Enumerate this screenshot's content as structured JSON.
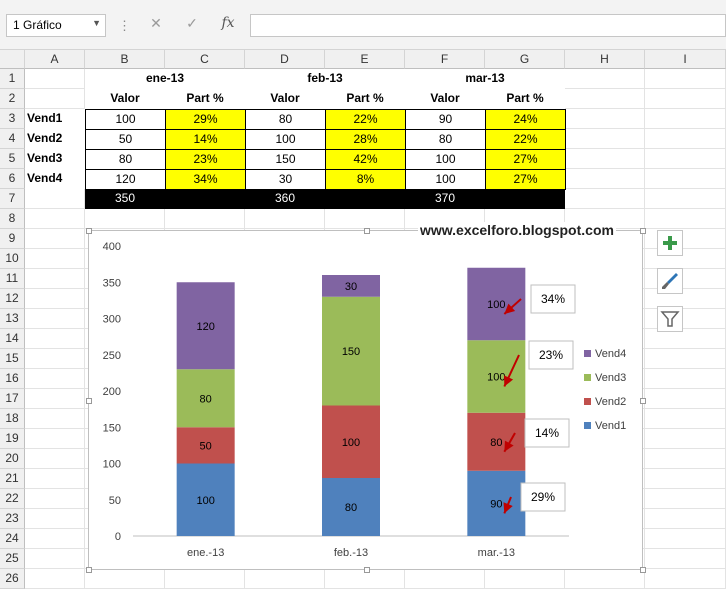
{
  "formula_bar": {
    "name_box": "1 Gráfico",
    "cancel_icon": "✕",
    "enter_icon": "✓",
    "fx_label": "fx",
    "formula": ""
  },
  "columns": [
    "A",
    "B",
    "C",
    "D",
    "E",
    "F",
    "G",
    "H",
    "I"
  ],
  "rows": [
    "1",
    "2",
    "3",
    "4",
    "5",
    "6",
    "7",
    "8",
    "9",
    "10",
    "11",
    "12",
    "13",
    "14",
    "15",
    "16",
    "17",
    "18",
    "19",
    "20",
    "21",
    "22",
    "23",
    "24",
    "25",
    "26"
  ],
  "sheet": {
    "month_headers": [
      "ene-13",
      "feb-13",
      "mar-13"
    ],
    "sub_headers": [
      "Valor",
      "Part %",
      "Valor",
      "Part %",
      "Valor",
      "Part %"
    ],
    "row_labels": [
      "Vend1",
      "Vend2",
      "Vend3",
      "Vend4"
    ],
    "values": [
      [
        "100",
        "29%",
        "80",
        "22%",
        "90",
        "24%"
      ],
      [
        "50",
        "14%",
        "100",
        "28%",
        "80",
        "22%"
      ],
      [
        "80",
        "23%",
        "150",
        "42%",
        "100",
        "27%"
      ],
      [
        "120",
        "34%",
        "30",
        "8%",
        "100",
        "27%"
      ]
    ],
    "totals": [
      "350",
      "360",
      "370"
    ]
  },
  "watermark": "www.excelforo.blogspot.com",
  "chart_data": {
    "type": "bar",
    "stacked": true,
    "categories": [
      "ene.-13",
      "feb.-13",
      "mar.-13"
    ],
    "series": [
      {
        "name": "Vend1",
        "color": "#4f81bd",
        "values": [
          100,
          80,
          90
        ]
      },
      {
        "name": "Vend2",
        "color": "#c0504d",
        "values": [
          50,
          100,
          80
        ]
      },
      {
        "name": "Vend3",
        "color": "#9bbb59",
        "values": [
          80,
          150,
          100
        ]
      },
      {
        "name": "Vend4",
        "color": "#8064a2",
        "values": [
          120,
          30,
          100
        ]
      }
    ],
    "ylim": [
      0,
      400
    ],
    "yticks": [
      0,
      50,
      100,
      150,
      200,
      250,
      300,
      350,
      400
    ],
    "legend_position": "right",
    "grid": false,
    "callouts": [
      {
        "series": "Vend4",
        "text": "34%"
      },
      {
        "series": "Vend3",
        "text": "23%"
      },
      {
        "series": "Vend2",
        "text": "14%"
      },
      {
        "series": "Vend1",
        "text": "29%"
      }
    ],
    "arrow_color": "#c00000"
  },
  "chart_tools": {
    "add_element_icon": "plus-icon",
    "styles_icon": "brush-icon",
    "filter_icon": "filter-icon"
  }
}
